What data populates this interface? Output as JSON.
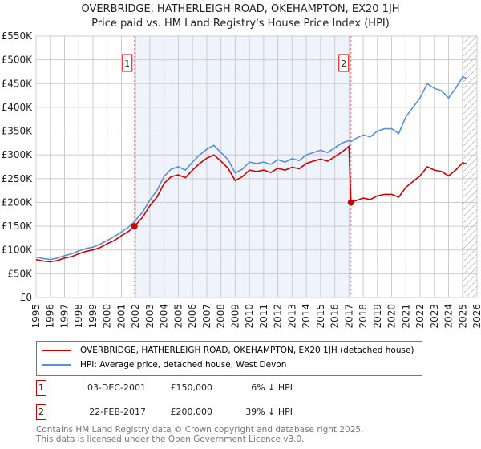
{
  "title": "OVERBRIDGE, HATHERLEIGH ROAD, OKEHAMPTON, EX20 1JH",
  "subtitle": "Price paid vs. HM Land Registry's House Price Index (HPI)",
  "colors": {
    "property": "#cc0000",
    "hpi": "#5b8fd4",
    "shade": "#eef3fc",
    "marker_line": "#e06666"
  },
  "chart_data": {
    "type": "line",
    "title": "OVERBRIDGE, HATHERLEIGH ROAD, OKEHAMPTON, EX20 1JH — Price paid vs. HM Land Registry's House Price Index (HPI)",
    "xlim": [
      1995,
      2026
    ],
    "ylim": [
      0,
      550000
    ],
    "yticks": [
      0,
      50000,
      100000,
      150000,
      200000,
      250000,
      300000,
      350000,
      400000,
      450000,
      500000,
      550000
    ],
    "ytick_labels": [
      "£0",
      "£50K",
      "£100K",
      "£150K",
      "£200K",
      "£250K",
      "£300K",
      "£350K",
      "£400K",
      "£450K",
      "£500K",
      "£550K"
    ],
    "xtick_labels": [
      "1995",
      "1996",
      "1997",
      "1998",
      "1999",
      "2000",
      "2001",
      "2002",
      "2003",
      "2004",
      "2005",
      "2006",
      "2007",
      "2008",
      "2009",
      "2010",
      "2011",
      "2012",
      "2013",
      "2014",
      "2015",
      "2016",
      "2017",
      "2018",
      "2019",
      "2020",
      "2021",
      "2022",
      "2023",
      "2024",
      "2025",
      "2026"
    ],
    "grid": true,
    "forecast_hatch_from": 2025.0,
    "shaded_range": [
      2001.92,
      2017.14
    ],
    "series": [
      {
        "name": "HPI: Average price, detached house, West Devon",
        "x": [
          1995,
          1995.5,
          1996,
          1996.5,
          1997,
          1997.5,
          1998,
          1998.5,
          1999,
          1999.5,
          2000,
          2000.5,
          2001,
          2001.5,
          2001.92,
          2002.5,
          2003,
          2003.5,
          2004,
          2004.5,
          2005,
          2005.5,
          2006,
          2006.5,
          2007,
          2007.5,
          2008,
          2008.5,
          2009,
          2009.5,
          2010,
          2010.5,
          2011,
          2011.5,
          2012,
          2012.5,
          2013,
          2013.5,
          2014,
          2014.5,
          2015,
          2015.5,
          2016,
          2016.5,
          2017,
          2017.14,
          2017.5,
          2018,
          2018.5,
          2019,
          2019.5,
          2020,
          2020.5,
          2021,
          2021.5,
          2022,
          2022.5,
          2023,
          2023.5,
          2024,
          2024.5,
          2025,
          2025.3
        ],
        "values": [
          85000,
          82000,
          80000,
          83000,
          88000,
          92000,
          98000,
          103000,
          106000,
          112000,
          120000,
          128000,
          138000,
          148000,
          160000,
          180000,
          205000,
          225000,
          255000,
          270000,
          275000,
          268000,
          285000,
          300000,
          312000,
          320000,
          305000,
          290000,
          262000,
          270000,
          285000,
          282000,
          285000,
          280000,
          290000,
          285000,
          292000,
          288000,
          300000,
          305000,
          310000,
          305000,
          315000,
          325000,
          330000,
          328000,
          335000,
          342000,
          338000,
          350000,
          355000,
          355000,
          345000,
          380000,
          400000,
          420000,
          450000,
          440000,
          435000,
          420000,
          440000,
          465000,
          460000
        ]
      },
      {
        "name": "OVERBRIDGE, HATHERLEIGH ROAD, OKEHAMPTON, EX20 1JH (detached house)",
        "x": [
          1995,
          1995.5,
          1996,
          1996.5,
          1997,
          1997.5,
          1998,
          1998.5,
          1999,
          1999.5,
          2000,
          2000.5,
          2001,
          2001.5,
          2001.92,
          2002.5,
          2003,
          2003.5,
          2004,
          2004.5,
          2005,
          2005.5,
          2006,
          2006.5,
          2007,
          2007.5,
          2008,
          2008.5,
          2009,
          2009.5,
          2010,
          2010.5,
          2011,
          2011.5,
          2012,
          2012.5,
          2013,
          2013.5,
          2014,
          2014.5,
          2015,
          2015.5,
          2016,
          2016.5,
          2017,
          2017.14,
          2017.5,
          2018,
          2018.5,
          2019,
          2019.5,
          2020,
          2020.5,
          2021,
          2021.5,
          2022,
          2022.5,
          2023,
          2023.5,
          2024,
          2024.5,
          2025,
          2025.3
        ],
        "values": [
          80000,
          77000,
          75000,
          78000,
          83000,
          86000,
          92000,
          97000,
          100000,
          105000,
          113000,
          120000,
          130000,
          139000,
          150000,
          169000,
          193000,
          211000,
          240000,
          254000,
          258000,
          252000,
          268000,
          282000,
          293000,
          300000,
          287000,
          272000,
          246000,
          254000,
          268000,
          265000,
          268000,
          263000,
          272000,
          268000,
          274000,
          271000,
          282000,
          287000,
          291000,
          287000,
          296000,
          306000,
          318000,
          200000,
          204000,
          209000,
          206000,
          214000,
          217000,
          217000,
          211000,
          232000,
          244000,
          256000,
          275000,
          268000,
          265000,
          256000,
          268000,
          284000,
          280000
        ]
      }
    ],
    "sales": [
      {
        "label": "1",
        "date": "03-DEC-2001",
        "x": 2001.92,
        "price": "£150,000",
        "value": 150000,
        "hpi_diff": "6% ↓ HPI"
      },
      {
        "label": "2",
        "date": "22-FEB-2017",
        "x": 2017.14,
        "price": "£200,000",
        "value": 200000,
        "hpi_diff": "39% ↓ HPI"
      }
    ]
  },
  "legend": {
    "property": "OVERBRIDGE, HATHERLEIGH ROAD, OKEHAMPTON, EX20 1JH (detached house)",
    "hpi": "HPI: Average price, detached house, West Devon"
  },
  "footer": {
    "line1": "Contains HM Land Registry data © Crown copyright and database right 2025.",
    "line2": "This data is licensed under the Open Government Licence v3.0."
  }
}
